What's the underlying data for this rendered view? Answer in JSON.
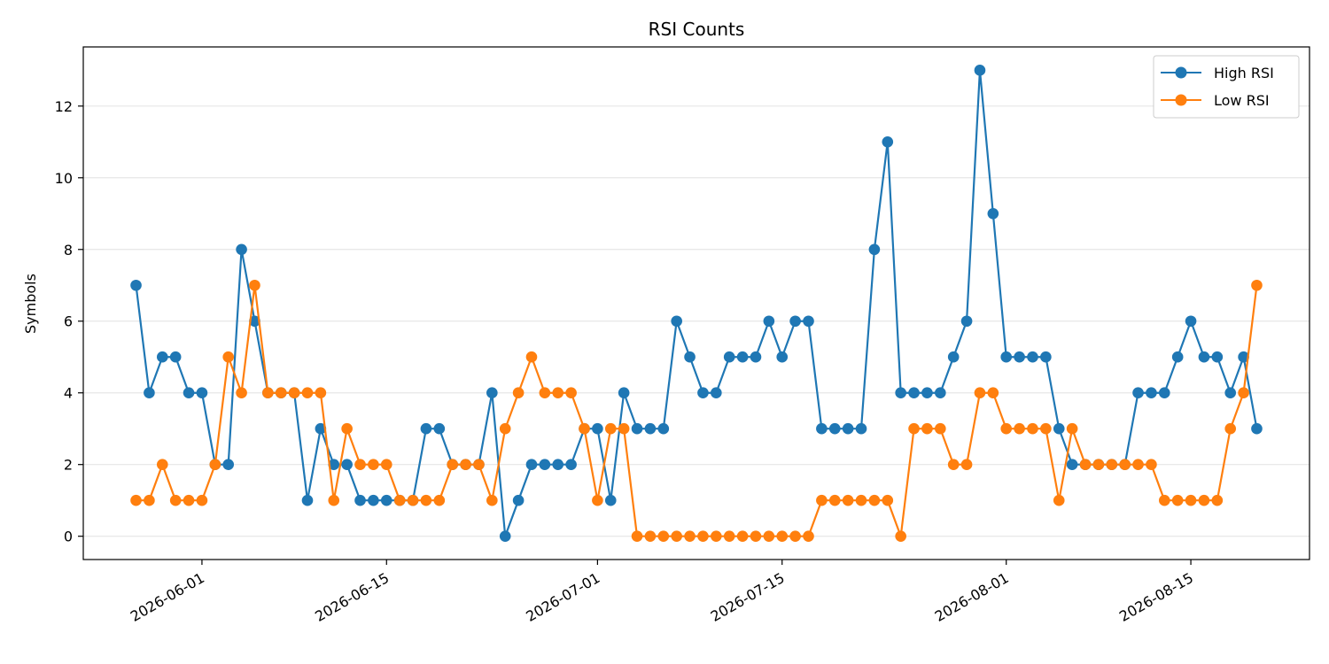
{
  "chart_data": {
    "type": "line",
    "title": "RSI Counts",
    "xlabel": "",
    "ylabel": "Symbols",
    "x_type": "date",
    "xlim": [
      "2026-05-23",
      "2026-08-24"
    ],
    "ylim": [
      -0.65,
      13.65
    ],
    "yticks": [
      0,
      2,
      4,
      6,
      8,
      10,
      12
    ],
    "xticks": [
      "2026-06-01",
      "2026-06-15",
      "2026-07-01",
      "2026-07-15",
      "2026-08-01",
      "2026-08-15"
    ],
    "grid": "horizontal",
    "legend_position": "top-right",
    "x": [
      "2026-05-27",
      "2026-05-28",
      "2026-05-29",
      "2026-05-30",
      "2026-05-31",
      "2026-06-01",
      "2026-06-02",
      "2026-06-03",
      "2026-06-04",
      "2026-06-05",
      "2026-06-06",
      "2026-06-07",
      "2026-06-08",
      "2026-06-09",
      "2026-06-10",
      "2026-06-11",
      "2026-06-12",
      "2026-06-13",
      "2026-06-14",
      "2026-06-15",
      "2026-06-16",
      "2026-06-17",
      "2026-06-18",
      "2026-06-19",
      "2026-06-20",
      "2026-06-21",
      "2026-06-22",
      "2026-06-23",
      "2026-06-24",
      "2026-06-25",
      "2026-06-26",
      "2026-06-27",
      "2026-06-28",
      "2026-06-29",
      "2026-06-30",
      "2026-07-01",
      "2026-07-02",
      "2026-07-03",
      "2026-07-04",
      "2026-07-05",
      "2026-07-06",
      "2026-07-07",
      "2026-07-08",
      "2026-07-09",
      "2026-07-10",
      "2026-07-11",
      "2026-07-12",
      "2026-07-13",
      "2026-07-14",
      "2026-07-15",
      "2026-07-16",
      "2026-07-17",
      "2026-07-18",
      "2026-07-19",
      "2026-07-20",
      "2026-07-21",
      "2026-07-22",
      "2026-07-23",
      "2026-07-24",
      "2026-07-25",
      "2026-07-26",
      "2026-07-27",
      "2026-07-28",
      "2026-07-29",
      "2026-07-30",
      "2026-07-31",
      "2026-08-01",
      "2026-08-02",
      "2026-08-03",
      "2026-08-04",
      "2026-08-05",
      "2026-08-06",
      "2026-08-07",
      "2026-08-08",
      "2026-08-09",
      "2026-08-10",
      "2026-08-11",
      "2026-08-12",
      "2026-08-13",
      "2026-08-14",
      "2026-08-15",
      "2026-08-16",
      "2026-08-17",
      "2026-08-18",
      "2026-08-19",
      "2026-08-20"
    ],
    "series": [
      {
        "name": "High RSI",
        "color": "#1f77b4",
        "values": [
          7,
          4,
          5,
          5,
          4,
          4,
          2,
          2,
          8,
          6,
          4,
          4,
          4,
          1,
          3,
          2,
          2,
          1,
          1,
          1,
          1,
          1,
          3,
          3,
          2,
          2,
          2,
          4,
          0,
          1,
          2,
          2,
          2,
          2,
          3,
          3,
          1,
          4,
          3,
          3,
          3,
          6,
          5,
          4,
          4,
          5,
          5,
          5,
          6,
          5,
          6,
          6,
          3,
          3,
          3,
          3,
          8,
          11,
          4,
          4,
          4,
          4,
          5,
          6,
          13,
          9,
          5,
          5,
          5,
          5,
          3,
          2,
          2,
          2,
          2,
          2,
          4,
          4,
          4,
          5,
          6,
          5,
          5,
          4,
          5,
          3
        ]
      },
      {
        "name": "Low RSI",
        "color": "#ff7f0e",
        "values": [
          1,
          1,
          2,
          1,
          1,
          1,
          2,
          5,
          4,
          7,
          4,
          4,
          4,
          4,
          4,
          1,
          3,
          2,
          2,
          2,
          1,
          1,
          1,
          1,
          2,
          2,
          2,
          1,
          3,
          4,
          5,
          4,
          4,
          4,
          3,
          1,
          3,
          3,
          0,
          0,
          0,
          0,
          0,
          0,
          0,
          0,
          0,
          0,
          0,
          0,
          0,
          0,
          1,
          1,
          1,
          1,
          1,
          1,
          0,
          3,
          3,
          3,
          2,
          2,
          4,
          4,
          3,
          3,
          3,
          3,
          1,
          3,
          2,
          2,
          2,
          2,
          2,
          2,
          1,
          1,
          1,
          1,
          1,
          3,
          4,
          7
        ]
      }
    ]
  }
}
